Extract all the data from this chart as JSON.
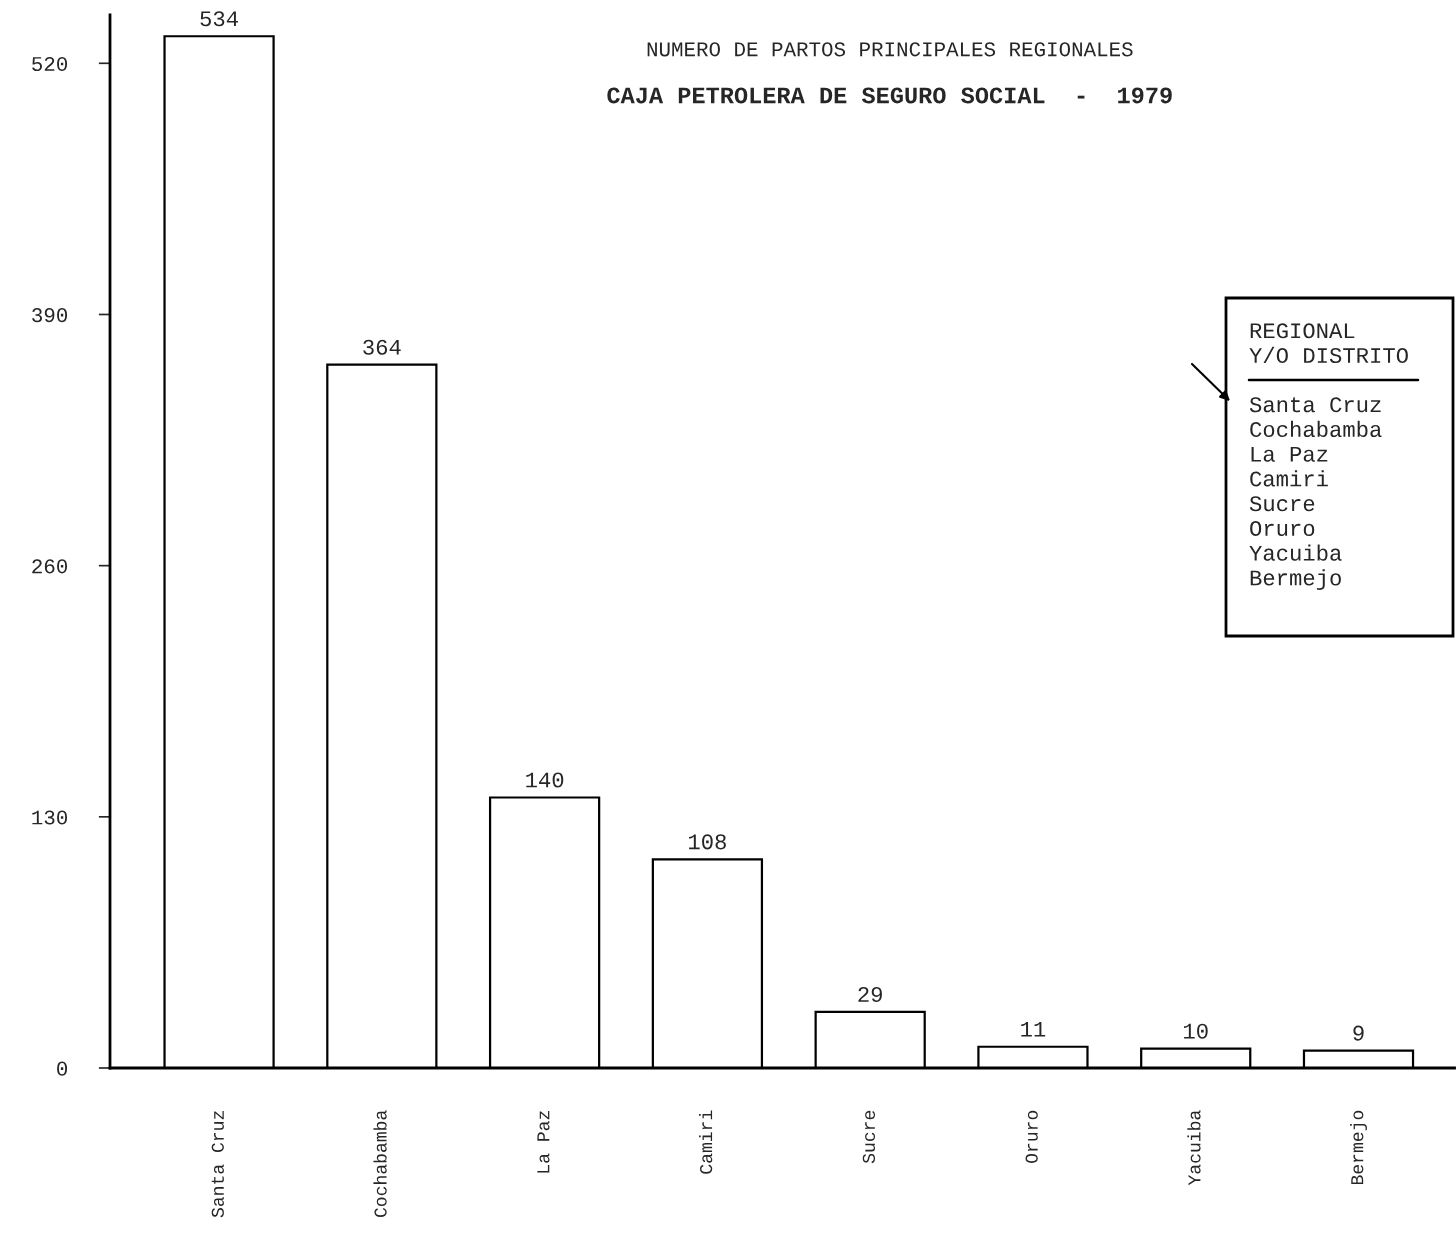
{
  "chart_data": {
    "type": "bar",
    "title": "NUMERO DE PARTOS PRINCIPALES REGIONALES",
    "subtitle": "CAJA PETROLERA DE SEGURO SOCIAL  -  1979",
    "categories": [
      "Santa Cruz",
      "Cochabamba",
      "La Paz",
      "Camiri",
      "Sucre",
      "Oruro",
      "Yacuiba",
      "Bermejo"
    ],
    "values": [
      534,
      364,
      140,
      108,
      29,
      11,
      10,
      9
    ],
    "color": "#ffffff",
    "ylim": [
      0,
      545
    ],
    "yticks": [
      0,
      130,
      260,
      390,
      520
    ],
    "grid": false,
    "data_labels": true,
    "annotations": [
      "REGIONAL\nY/O DISTRITO",
      "Santa Cruz\nCochabamba\nLa Paz\nCamiri\nSucre\nOruro\nYacuiba\nBermejo"
    ]
  }
}
